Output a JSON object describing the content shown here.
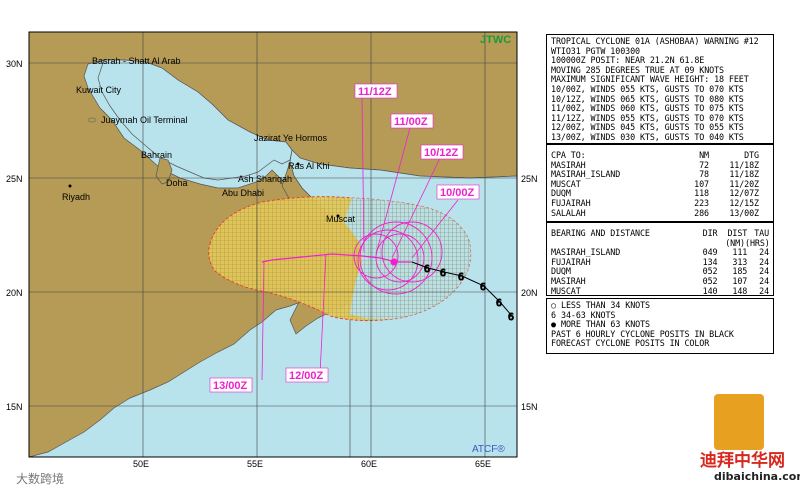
{
  "map": {
    "agency": "JTWC",
    "footer_logo": "ATCF®",
    "lat_labels": [
      "30N",
      "25N",
      "20N",
      "15N"
    ],
    "lon_labels": [
      "50E",
      "55E",
      "60E",
      "65E"
    ],
    "places": [
      {
        "name": "Basrah - Shatt Al Arab"
      },
      {
        "name": "Kuwait City"
      },
      {
        "name": "Juaymah Oil Terminal"
      },
      {
        "name": "Jazirat Ye Hormos"
      },
      {
        "name": "Bahrain"
      },
      {
        "name": "Doha"
      },
      {
        "name": "Ras Al Khi"
      },
      {
        "name": "Ash Shariqah"
      },
      {
        "name": "Abu Dhabi"
      },
      {
        "name": "Riyadh"
      },
      {
        "name": "Muscat"
      }
    ],
    "forecast_labels": [
      "11/12Z",
      "11/00Z",
      "10/12Z",
      "10/00Z",
      "12/00Z",
      "13/00Z"
    ],
    "colors": {
      "sea": "#b8e2ec",
      "land": "#b59b56",
      "danger_fill": "#e2c85a",
      "forecast": "#ee22cc",
      "danger_edge": "#e8402a"
    }
  },
  "warning": {
    "lines": [
      "TROPICAL CYCLONE 01A (ASHOBAA) WARNING #12",
      "WTIO31 PGTW 100300",
      "100000Z POSIT: NEAR 21.2N 61.8E",
      "MOVING 285 DEGREES TRUE AT 09 KNOTS",
      "MAXIMUM SIGNIFICANT WAVE HEIGHT: 18 FEET",
      "10/00Z, WINDS 055 KTS, GUSTS TO 070 KTS",
      "10/12Z, WINDS 065 KTS, GUSTS TO 080 KTS",
      "11/00Z, WINDS 060 KTS, GUSTS TO 075 KTS",
      "11/12Z, WINDS 055 KTS, GUSTS TO 070 KTS",
      "12/00Z, WINDS 045 KTS, GUSTS TO 055 KTS",
      "13/00Z, WINDS 030 KTS, GUSTS TO 040 KTS"
    ]
  },
  "cpa": {
    "headers": [
      "CPA TO:",
      "NM",
      "DTG"
    ],
    "rows": [
      [
        "MASIRAH",
        "72",
        "11/18Z"
      ],
      [
        "MASIRAH_ISLAND",
        "78",
        "11/18Z"
      ],
      [
        "MUSCAT",
        "107",
        "11/20Z"
      ],
      [
        "DUQM",
        "118",
        "12/07Z"
      ],
      [
        "FUJAIRAH",
        "223",
        "12/15Z"
      ],
      [
        "SALALAH",
        "286",
        "13/00Z"
      ]
    ]
  },
  "bearing": {
    "headers": [
      "BEARING AND DISTANCE",
      "DIR",
      "DIST",
      "TAU"
    ],
    "subheaders": [
      "(NM)",
      "(HRS)"
    ],
    "rows": [
      [
        "MASIRAH_ISLAND",
        "049",
        "111",
        "24"
      ],
      [
        "FUJAIRAH",
        "134",
        "313",
        "24"
      ],
      [
        "DUQM",
        "052",
        "185",
        "24"
      ],
      [
        "MASIRAH",
        "052",
        "107",
        "24"
      ],
      [
        "MUSCAT",
        "140",
        "148",
        "24"
      ]
    ]
  },
  "legend": {
    "items": [
      {
        "icon": "open-circle-icon",
        "label": "LESS THAN 34 KNOTS"
      },
      {
        "icon": "hurricane-outline-icon",
        "label": "34-63 KNOTS"
      },
      {
        "icon": "hurricane-filled-icon",
        "label": "MORE THAN 63 KNOTS"
      }
    ],
    "notes": [
      "PAST 6 HOURLY CYCLONE POSITS IN BLACK",
      "FORECAST CYCLONE POSITS IN COLOR"
    ]
  },
  "watermarks": {
    "site_cn": "迪拜中华网",
    "site_url": "dibaichina.com",
    "left_cn": "大数跨境"
  }
}
